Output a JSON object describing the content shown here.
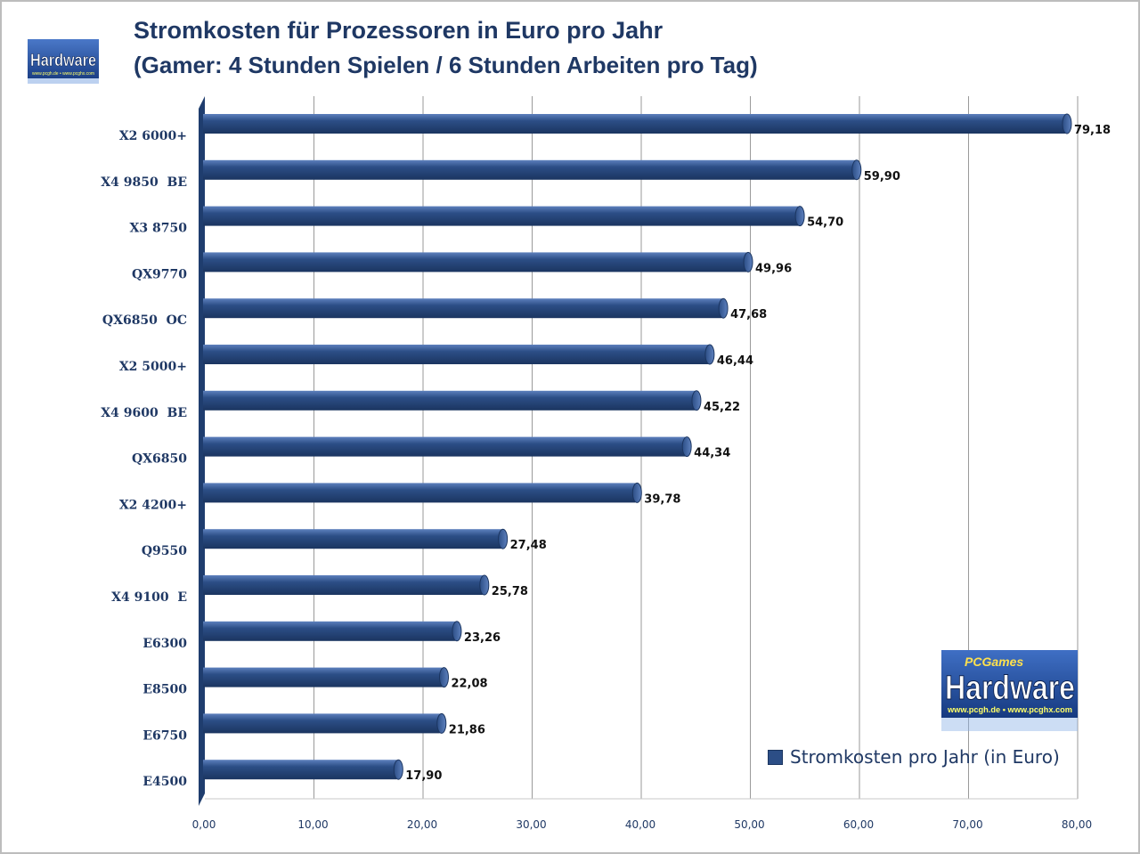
{
  "header": {
    "title": "Stromkosten für Prozessoren in Euro pro Jahr",
    "subtitle": "(Gamer: 4 Stunden Spielen / 6 Stunden Arbeiten pro Tag)"
  },
  "logo_small": {
    "brand": "Hardware",
    "tagline": "www.pcgh.de • www.pcghx.com"
  },
  "logo_large": {
    "prefix": "PCGames",
    "brand": "Hardware",
    "url": "www.pcgh.de • www.pcghx.com"
  },
  "colors": {
    "bar": "#2c4e86",
    "bar_dark": "#1b3560",
    "bar_light": "#5d80bd",
    "text": "#1f3864",
    "grid": "#9a9a9a"
  },
  "chart_data": {
    "type": "bar",
    "orientation": "horizontal",
    "categories": [
      "X2 6000+",
      "X4 9850  BE",
      "X3 8750",
      "QX9770",
      "QX6850  OC",
      "X2 5000+",
      "X4 9600  BE",
      "QX6850",
      "X2 4200+",
      "Q9550",
      "X4 9100  E",
      "E6300",
      "E8500",
      "E6750",
      "E4500"
    ],
    "series": [
      {
        "name": "Stromkosten pro Jahr (in Euro)",
        "values": [
          79.18,
          59.9,
          54.7,
          49.96,
          47.68,
          46.44,
          45.22,
          44.34,
          39.78,
          27.48,
          25.78,
          23.26,
          22.08,
          21.86,
          17.9
        ]
      }
    ],
    "value_labels": [
      "79,18",
      "59,90",
      "54,70",
      "49,96",
      "47,68",
      "46,44",
      "45,22",
      "44,34",
      "39,78",
      "27,48",
      "25,78",
      "23,26",
      "22,08",
      "21,86",
      "17,90"
    ],
    "xlim": [
      0,
      80
    ],
    "ticks": [
      0,
      10,
      20,
      30,
      40,
      50,
      60,
      70,
      80
    ],
    "tick_labels": [
      "0,00",
      "10,00",
      "20,00",
      "30,00",
      "40,00",
      "50,00",
      "60,00",
      "70,00",
      "80,00"
    ],
    "grid": true,
    "legend_position": "bottom-right"
  }
}
